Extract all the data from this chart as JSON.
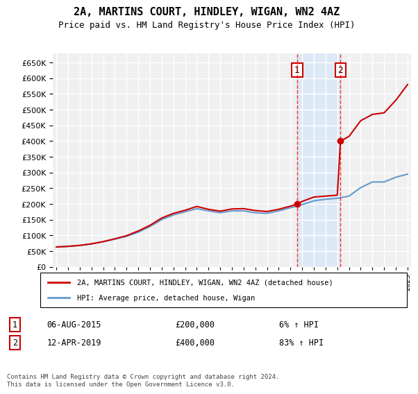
{
  "title": "2A, MARTINS COURT, HINDLEY, WIGAN, WN2 4AZ",
  "subtitle": "Price paid vs. HM Land Registry's House Price Index (HPI)",
  "ylim": [
    0,
    680000
  ],
  "yticks": [
    0,
    50000,
    100000,
    150000,
    200000,
    250000,
    300000,
    350000,
    400000,
    450000,
    500000,
    550000,
    600000,
    650000
  ],
  "ylabel_format": "£{0}K",
  "background_color": "#ffffff",
  "plot_bg_color": "#f0f0f0",
  "grid_color": "#ffffff",
  "hpi_line_color": "#6699cc",
  "price_line_color": "#cc0000",
  "shade_color": "#dce9f5",
  "transaction1_x": 2015.58,
  "transaction2_x": 2019.27,
  "transaction1_price": 200000,
  "transaction2_price": 400000,
  "transaction1_label": "1",
  "transaction2_label": "2",
  "legend_label1": "2A, MARTINS COURT, HINDLEY, WIGAN, WN2 4AZ (detached house)",
  "legend_label2": "HPI: Average price, detached house, Wigan",
  "table_row1": [
    "1",
    "06-AUG-2015",
    "£200,000",
    "6% ↑ HPI"
  ],
  "table_row2": [
    "2",
    "12-APR-2019",
    "£400,000",
    "83% ↑ HPI"
  ],
  "footer": "Contains HM Land Registry data © Crown copyright and database right 2024.\nThis data is licensed under the Open Government Licence v3.0.",
  "hpi_data": {
    "years": [
      1995,
      1996,
      1997,
      1998,
      1999,
      2000,
      2001,
      2002,
      2003,
      2004,
      2005,
      2006,
      2007,
      2008,
      2009,
      2010,
      2011,
      2012,
      2013,
      2014,
      2015,
      2016,
      2017,
      2018,
      2019,
      2020,
      2021,
      2022,
      2023,
      2024,
      2025
    ],
    "values": [
      63000,
      65000,
      68000,
      73000,
      80000,
      88000,
      97000,
      110000,
      128000,
      150000,
      165000,
      175000,
      185000,
      178000,
      172000,
      178000,
      178000,
      172000,
      170000,
      178000,
      188000,
      198000,
      210000,
      215000,
      218000,
      225000,
      252000,
      270000,
      270000,
      285000,
      295000
    ]
  },
  "price_data": {
    "years": [
      1995,
      1996,
      1997,
      1998,
      1999,
      2000,
      2001,
      2002,
      2003,
      2004,
      2005,
      2006,
      2007,
      2008,
      2009,
      2010,
      2011,
      2012,
      2013,
      2014,
      2015,
      2015.58,
      2016,
      2017,
      2018,
      2019,
      2019.27,
      2020,
      2021,
      2022,
      2023,
      2024,
      2025
    ],
    "values": [
      63000,
      65000,
      68000,
      73000,
      80000,
      89000,
      99000,
      114000,
      132000,
      155000,
      170000,
      180000,
      192000,
      183000,
      177000,
      184000,
      185000,
      179000,
      176000,
      183000,
      193000,
      200000,
      208000,
      222000,
      225000,
      228000,
      400000,
      415000,
      465000,
      485000,
      490000,
      530000,
      580000
    ]
  }
}
